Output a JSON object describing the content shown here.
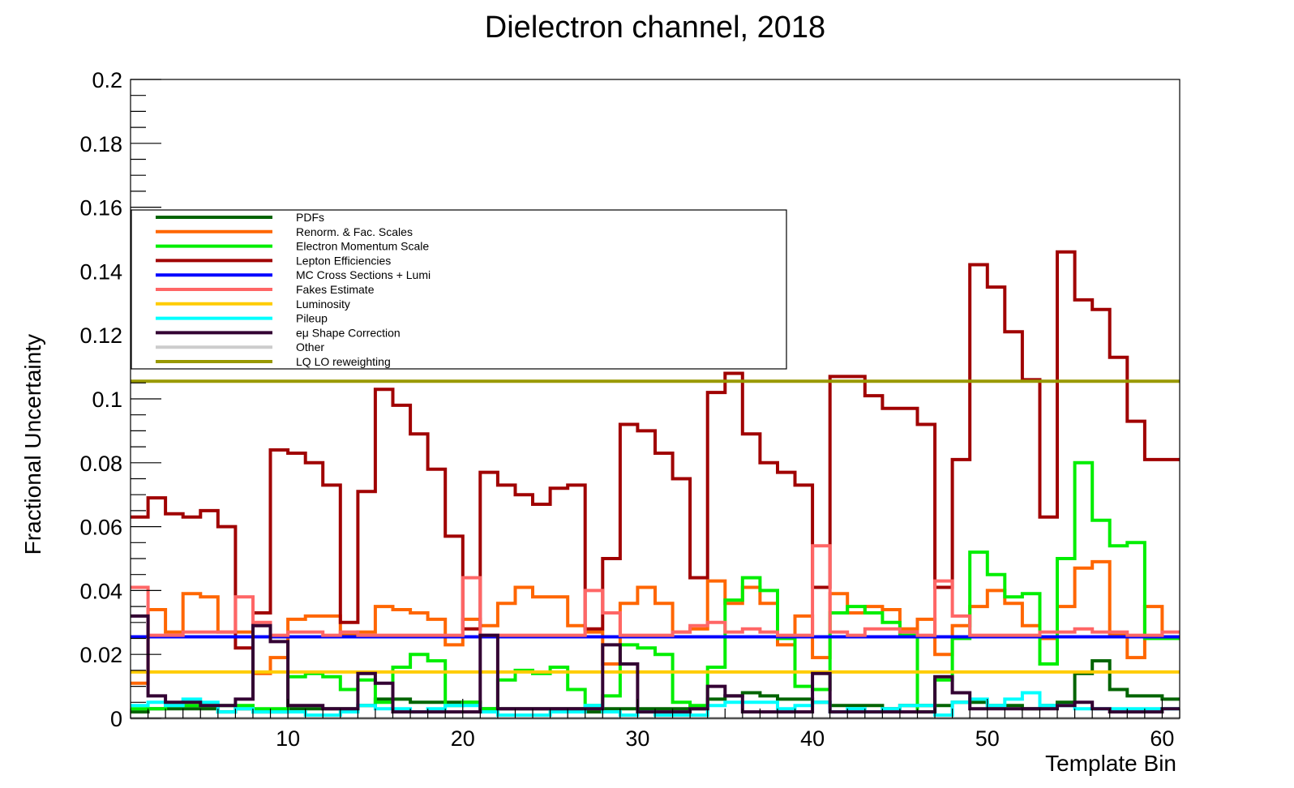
{
  "chart_data": {
    "type": "line",
    "title": "Dielectron channel, 2018",
    "xlabel": "Template Bin",
    "ylabel": "Fractional Uncertainty",
    "xlim": [
      1,
      61
    ],
    "ylim": [
      0,
      0.2
    ],
    "x_ticks": [
      10,
      20,
      30,
      40,
      50,
      60
    ],
    "y_ticks": [
      0,
      0.02,
      0.04,
      0.06,
      0.08,
      0.1,
      0.12,
      0.14,
      0.16,
      0.18,
      0.2
    ],
    "y_tick_labels": [
      "0",
      "0.02",
      "0.04",
      "0.06",
      "0.08",
      "0.1",
      "0.12",
      "0.14",
      "0.16",
      "0.18",
      "0.2"
    ],
    "grid": false,
    "legend_placement": "upper-left",
    "bin_edges": "unit bins, first bin starts at 1",
    "series": [
      {
        "name": "PDFs",
        "color": "#006400",
        "values": [
          0.002,
          0.003,
          0.003,
          0.003,
          0.003,
          0.002,
          0.003,
          0.002,
          0.002,
          0.003,
          0.003,
          0.003,
          0.003,
          0.004,
          0.006,
          0.006,
          0.005,
          0.005,
          0.005,
          0.005,
          0.003,
          0.003,
          0.003,
          0.003,
          0.003,
          0.003,
          0.002,
          0.003,
          0.003,
          0.003,
          0.003,
          0.003,
          0.003,
          0.006,
          0.007,
          0.008,
          0.007,
          0.006,
          0.006,
          0.005,
          0.004,
          0.004,
          0.004,
          0.003,
          0.004,
          0.004,
          0.004,
          0.005,
          0.005,
          0.004,
          0.004,
          0.003,
          0.004,
          0.005,
          0.014,
          0.018,
          0.009,
          0.007,
          0.007,
          0.006
        ]
      },
      {
        "name": "Renorm. & Fac. Scales",
        "color": "#ff6600",
        "values": [
          0.011,
          0.034,
          0.027,
          0.039,
          0.038,
          0.027,
          0.027,
          0.014,
          0.019,
          0.031,
          0.032,
          0.032,
          0.026,
          0.027,
          0.035,
          0.034,
          0.033,
          0.031,
          0.023,
          0.031,
          0.029,
          0.036,
          0.041,
          0.038,
          0.038,
          0.029,
          0.027,
          0.017,
          0.036,
          0.041,
          0.036,
          0.027,
          0.028,
          0.043,
          0.036,
          0.041,
          0.036,
          0.023,
          0.032,
          0.019,
          0.039,
          0.033,
          0.035,
          0.034,
          0.028,
          0.031,
          0.02,
          0.029,
          0.035,
          0.04,
          0.036,
          0.029,
          0.025,
          0.035,
          0.047,
          0.049,
          0.026,
          0.019,
          0.035,
          0.025
        ]
      },
      {
        "name": "Electron Momentum Scale",
        "color": "#00ee00",
        "values": [
          0.003,
          0.003,
          0.004,
          0.004,
          0.004,
          0.004,
          0.004,
          0.003,
          0.003,
          0.013,
          0.014,
          0.013,
          0.009,
          0.012,
          0.005,
          0.016,
          0.02,
          0.018,
          0.004,
          0.005,
          0.003,
          0.012,
          0.015,
          0.014,
          0.016,
          0.009,
          0.004,
          0.007,
          0.023,
          0.022,
          0.02,
          0.005,
          0.004,
          0.016,
          0.037,
          0.044,
          0.04,
          0.025,
          0.01,
          0.009,
          0.033,
          0.035,
          0.033,
          0.03,
          0.026,
          0.002,
          0.012,
          0.025,
          0.052,
          0.045,
          0.038,
          0.039,
          0.017,
          0.05,
          0.08,
          0.062,
          0.054,
          0.055,
          0.025,
          0.025
        ]
      },
      {
        "name": "Lepton Efficiencies",
        "color": "#a00000",
        "values": [
          0.063,
          0.069,
          0.064,
          0.063,
          0.065,
          0.06,
          0.022,
          0.033,
          0.084,
          0.083,
          0.08,
          0.073,
          0.03,
          0.071,
          0.103,
          0.098,
          0.089,
          0.078,
          0.057,
          0.028,
          0.077,
          0.073,
          0.07,
          0.067,
          0.072,
          0.073,
          0.028,
          0.05,
          0.092,
          0.09,
          0.083,
          0.075,
          0.044,
          0.102,
          0.108,
          0.089,
          0.08,
          0.077,
          0.073,
          0.041,
          0.107,
          0.107,
          0.101,
          0.097,
          0.097,
          0.092,
          0.041,
          0.081,
          0.142,
          0.135,
          0.121,
          0.106,
          0.063,
          0.146,
          0.131,
          0.128,
          0.113,
          0.093,
          0.081,
          0.081
        ]
      },
      {
        "name": "MC Cross Sections + Lumi",
        "color": "#0000ff",
        "values": [
          0.0255,
          0.0255,
          0.0255,
          0.0255,
          0.0255,
          0.0255,
          0.0255,
          0.0255,
          0.0255,
          0.0255,
          0.0255,
          0.0255,
          0.0255,
          0.0255,
          0.0255,
          0.0255,
          0.0255,
          0.0255,
          0.0255,
          0.0255,
          0.0255,
          0.0255,
          0.0255,
          0.0255,
          0.0255,
          0.0255,
          0.0255,
          0.0255,
          0.0255,
          0.0255,
          0.0255,
          0.0255,
          0.0255,
          0.0255,
          0.0255,
          0.0255,
          0.0255,
          0.0255,
          0.0255,
          0.0255,
          0.0255,
          0.0255,
          0.0255,
          0.0255,
          0.0255,
          0.0255,
          0.0255,
          0.0255,
          0.0255,
          0.0255,
          0.0255,
          0.0255,
          0.0255,
          0.0255,
          0.0255,
          0.0255,
          0.0255,
          0.0255,
          0.0255,
          0.0255
        ]
      },
      {
        "name": "Fakes Estimate",
        "color": "#ff6666",
        "values": [
          0.041,
          0.026,
          0.026,
          0.027,
          0.027,
          0.027,
          0.038,
          0.03,
          0.026,
          0.027,
          0.027,
          0.026,
          0.027,
          0.026,
          0.026,
          0.026,
          0.026,
          0.026,
          0.026,
          0.044,
          0.026,
          0.026,
          0.026,
          0.026,
          0.026,
          0.026,
          0.04,
          0.033,
          0.026,
          0.026,
          0.026,
          0.027,
          0.029,
          0.03,
          0.027,
          0.028,
          0.027,
          0.026,
          0.026,
          0.054,
          0.027,
          0.026,
          0.028,
          0.028,
          0.027,
          0.026,
          0.043,
          0.032,
          0.026,
          0.026,
          0.026,
          0.026,
          0.027,
          0.027,
          0.028,
          0.027,
          0.027,
          0.026,
          0.026,
          0.027
        ]
      },
      {
        "name": "Luminosity",
        "color": "#ffcc00",
        "values": [
          0.0145,
          0.0145,
          0.0145,
          0.0145,
          0.0145,
          0.0145,
          0.0145,
          0.0145,
          0.0145,
          0.0145,
          0.0145,
          0.0145,
          0.0145,
          0.0145,
          0.0145,
          0.0145,
          0.0145,
          0.0145,
          0.0145,
          0.0145,
          0.0145,
          0.0145,
          0.0145,
          0.0145,
          0.0145,
          0.0145,
          0.0145,
          0.0145,
          0.0145,
          0.0145,
          0.0145,
          0.0145,
          0.0145,
          0.0145,
          0.0145,
          0.0145,
          0.0145,
          0.0145,
          0.0145,
          0.0145,
          0.0145,
          0.0145,
          0.0145,
          0.0145,
          0.0145,
          0.0145,
          0.0145,
          0.0145,
          0.0145,
          0.0145,
          0.0145,
          0.0145,
          0.0145,
          0.0145,
          0.0145,
          0.0145,
          0.0145,
          0.0145,
          0.0145,
          0.0145
        ]
      },
      {
        "name": "Pileup",
        "color": "#00ffff",
        "values": [
          0.004,
          0.005,
          0.004,
          0.006,
          0.005,
          0.002,
          0.003,
          0.002,
          0.002,
          0.002,
          0.001,
          0.001,
          0.002,
          0.004,
          0.003,
          0.003,
          0.002,
          0.003,
          0.004,
          0.004,
          0.002,
          0.001,
          0.001,
          0.001,
          0.002,
          0.002,
          0.004,
          0.002,
          0.001,
          0.002,
          0.001,
          0.001,
          0.001,
          0.004,
          0.005,
          0.005,
          0.005,
          0.003,
          0.004,
          0.005,
          0.002,
          0.003,
          0.002,
          0.003,
          0.004,
          0.004,
          0.001,
          0.005,
          0.006,
          0.004,
          0.006,
          0.008,
          0.004,
          0.004,
          0.003,
          0.003,
          0.003,
          0.003,
          0.003,
          0.003
        ]
      },
      {
        "name": "eμ Shape Correction",
        "color": "#330033",
        "values": [
          0.032,
          0.007,
          0.005,
          0.005,
          0.004,
          0.004,
          0.006,
          0.029,
          0.024,
          0.004,
          0.004,
          0.003,
          0.003,
          0.014,
          0.011,
          0.002,
          0.002,
          0.002,
          0.002,
          0.002,
          0.026,
          0.003,
          0.003,
          0.003,
          0.003,
          0.003,
          0.003,
          0.023,
          0.017,
          0.002,
          0.002,
          0.002,
          0.003,
          0.01,
          0.007,
          0.002,
          0.002,
          0.002,
          0.002,
          0.014,
          0.002,
          0.002,
          0.002,
          0.002,
          0.002,
          0.002,
          0.013,
          0.008,
          0.003,
          0.003,
          0.003,
          0.003,
          0.003,
          0.004,
          0.005,
          0.003,
          0.002,
          0.002,
          0.002,
          0.003
        ]
      },
      {
        "name": "Other",
        "color": "#cccccc",
        "values": [
          0,
          0,
          0,
          0,
          0,
          0,
          0,
          0,
          0,
          0,
          0,
          0,
          0,
          0,
          0,
          0,
          0,
          0,
          0,
          0,
          0,
          0,
          0,
          0,
          0,
          0,
          0,
          0,
          0,
          0,
          0,
          0,
          0,
          0,
          0,
          0,
          0,
          0,
          0,
          0,
          0,
          0,
          0,
          0,
          0,
          0,
          0,
          0,
          0,
          0,
          0,
          0,
          0,
          0,
          0,
          0,
          0,
          0,
          0,
          0
        ]
      },
      {
        "name": "LQ LO reweighting",
        "color": "#999900",
        "values": [
          0.1055,
          0.1055,
          0.1055,
          0.1055,
          0.1055,
          0.1055,
          0.1055,
          0.1055,
          0.1055,
          0.1055,
          0.1055,
          0.1055,
          0.1055,
          0.1055,
          0.1055,
          0.1055,
          0.1055,
          0.1055,
          0.1055,
          0.1055,
          0.1055,
          0.1055,
          0.1055,
          0.1055,
          0.1055,
          0.1055,
          0.1055,
          0.1055,
          0.1055,
          0.1055,
          0.1055,
          0.1055,
          0.1055,
          0.1055,
          0.1055,
          0.1055,
          0.1055,
          0.1055,
          0.1055,
          0.1055,
          0.1055,
          0.1055,
          0.1055,
          0.1055,
          0.1055,
          0.1055,
          0.1055,
          0.1055,
          0.1055,
          0.1055,
          0.1055,
          0.1055,
          0.1055,
          0.1055,
          0.1055,
          0.1055,
          0.1055,
          0.1055,
          0.1055,
          0.1055
        ]
      }
    ]
  }
}
